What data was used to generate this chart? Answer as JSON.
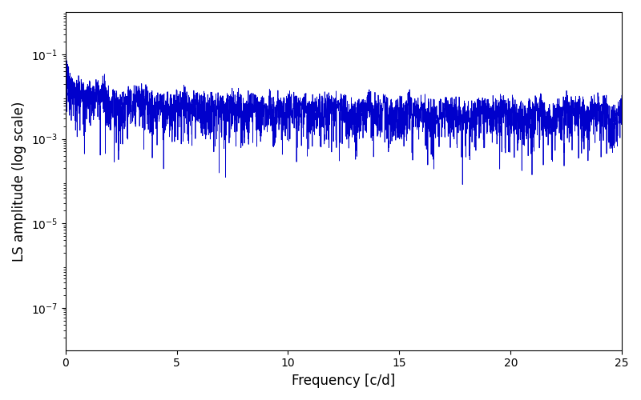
{
  "title": "",
  "xlabel": "Frequency [c/d]",
  "ylabel": "LS amplitude (log scale)",
  "xlim": [
    0,
    25
  ],
  "ylim": [
    1e-08,
    1
  ],
  "yscale": "log",
  "line_color": "#0000cc",
  "line_width": 0.6,
  "figsize": [
    8.0,
    5.0
  ],
  "dpi": 100,
  "freq_max": 25.0,
  "n_freq": 8000,
  "seed": 12345,
  "yticks": [
    1e-07,
    1e-05,
    0.001,
    0.1
  ],
  "xticks": [
    0,
    5,
    10,
    15,
    20,
    25
  ]
}
